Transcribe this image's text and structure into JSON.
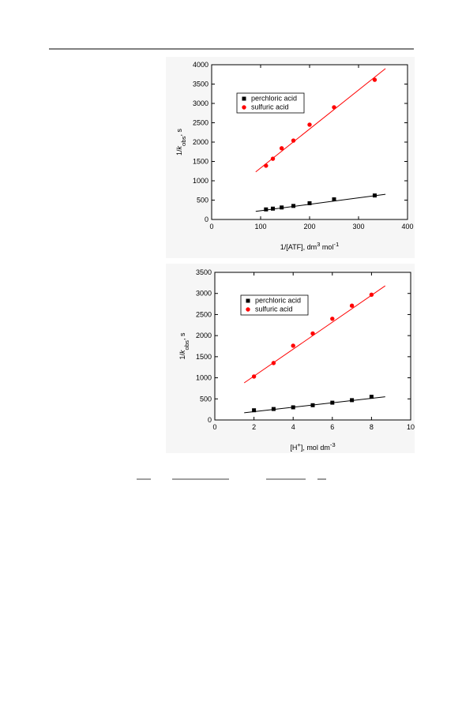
{
  "chart_data": [
    {
      "type": "scatter",
      "xlabel": [
        {
          "text": "1/[ATF], dm"
        },
        {
          "text": "3",
          "style": "sup"
        },
        {
          "text": " mol"
        },
        {
          "text": "-1",
          "style": "sup"
        }
      ],
      "ylabel": [
        {
          "text": "1/"
        },
        {
          "text": "k",
          "style": "italic"
        },
        {
          "text": "obs",
          "style": "sub"
        },
        {
          "text": ", s"
        }
      ],
      "xlim": [
        0,
        400
      ],
      "xticks": [
        0,
        100,
        200,
        300,
        400
      ],
      "ylim": [
        0,
        4000
      ],
      "yticks": [
        0,
        500,
        1000,
        1500,
        2000,
        2500,
        3000,
        3500,
        4000
      ],
      "legend": "upper left",
      "series": [
        {
          "name": "perchloric acid",
          "color": "#000000",
          "marker": "square",
          "x": [
            111,
            125,
            143,
            167,
            200,
            250,
            333
          ],
          "values": [
            260,
            280,
            310,
            350,
            420,
            520,
            620
          ]
        },
        {
          "name": "sulfuric acid",
          "color": "#ff0000",
          "marker": "circle",
          "x": [
            111,
            125,
            143,
            167,
            200,
            250,
            333
          ],
          "values": [
            1390,
            1570,
            1840,
            2040,
            2450,
            2900,
            3610
          ]
        }
      ],
      "fit_lines": [
        {
          "color": "#000000",
          "x": [
            90,
            355
          ],
          "y": [
            210,
            650
          ]
        },
        {
          "color": "#ff0000",
          "x": [
            90,
            355
          ],
          "y": [
            1230,
            3900
          ]
        }
      ]
    },
    {
      "type": "scatter",
      "xlabel": [
        {
          "text": "[H"
        },
        {
          "text": "+",
          "style": "sup"
        },
        {
          "text": "], mol dm"
        },
        {
          "text": "-3",
          "style": "sup"
        }
      ],
      "ylabel": [
        {
          "text": "1/"
        },
        {
          "text": "k",
          "style": "italic"
        },
        {
          "text": "obs",
          "style": "sub"
        },
        {
          "text": ", s"
        }
      ],
      "xlim": [
        0,
        10
      ],
      "xticks": [
        0,
        2,
        4,
        6,
        8,
        10
      ],
      "ylim": [
        0,
        3500
      ],
      "yticks": [
        0,
        500,
        1000,
        1500,
        2000,
        2500,
        3000,
        3500
      ],
      "legend": "upper left",
      "series": [
        {
          "name": "perchloric acid",
          "color": "#000000",
          "marker": "square",
          "x": [
            2,
            3,
            4,
            5,
            6,
            7,
            8
          ],
          "values": [
            230,
            260,
            300,
            350,
            410,
            470,
            550
          ]
        },
        {
          "name": "sulfuric acid",
          "color": "#ff0000",
          "marker": "circle",
          "x": [
            2,
            3,
            4,
            5,
            6,
            7,
            8
          ],
          "values": [
            1030,
            1350,
            1760,
            2050,
            2400,
            2710,
            2970
          ]
        }
      ],
      "fit_lines": [
        {
          "color": "#000000",
          "x": [
            1.5,
            8.7
          ],
          "y": [
            170,
            550
          ]
        },
        {
          "color": "#ff0000",
          "x": [
            1.5,
            8.7
          ],
          "y": [
            880,
            3180
          ]
        }
      ]
    }
  ]
}
